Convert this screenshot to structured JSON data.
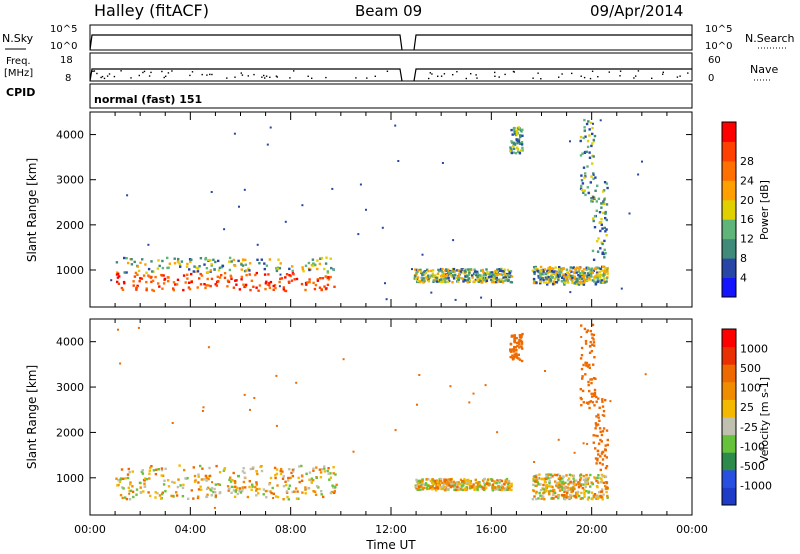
{
  "header": {
    "station": "Halley (fitACF)",
    "beam": "Beam 09",
    "date": "09/Apr/2014"
  },
  "panels": {
    "nsky_label": "N.Sky",
    "nsearch_label": "N.Search",
    "nsky_ticks": [
      "10^5",
      "10^0"
    ],
    "nsearch_ticks": [
      "10^5",
      "10^0"
    ],
    "freq_label_1": "Freq.",
    "freq_label_2": "[MHz]",
    "freq_ticks": [
      "18",
      "8"
    ],
    "nave_label": "Nave",
    "nave_ticks": [
      "60",
      "0"
    ],
    "cpid_label": "CPID",
    "cpid_text": "normal (fast) 151"
  },
  "colors": {
    "power_scale": [
      "#1414ff",
      "#2846a6",
      "#3f8a78",
      "#5fb47a",
      "#e0d000",
      "#ffa000",
      "#ff7000",
      "#ff4000",
      "#ff0000"
    ],
    "velocity_scale": [
      "#1e3cc8",
      "#2850e0",
      "#2c8a4a",
      "#66c23a",
      "#c0c0b0",
      "#f5b800",
      "#f08c00",
      "#ee6a00",
      "#e83000",
      "#ff0000"
    ],
    "trace": "#000000"
  },
  "chart_data": [
    {
      "type": "heatmap",
      "panel": "power",
      "ylabel": "Slant Range [km]",
      "ylim": [
        180,
        4500
      ],
      "xlim": [
        0,
        24
      ],
      "y_ticks": [
        "1000",
        "2000",
        "3000",
        "4000"
      ],
      "colorbar_label": "Power [dB]",
      "colorbar_ticks": [
        "4",
        "8",
        "12",
        "16",
        "20",
        "24",
        "28"
      ],
      "regions": [
        {
          "t0": 1.0,
          "t1": 9.8,
          "r0": 550,
          "r1": 1300,
          "kind": "band"
        },
        {
          "t0": 12.9,
          "t1": 16.8,
          "r0": 750,
          "r1": 1050,
          "kind": "band"
        },
        {
          "t0": 17.6,
          "t1": 20.6,
          "r0": 700,
          "r1": 1100,
          "kind": "band"
        },
        {
          "t0": 16.7,
          "t1": 17.2,
          "r0": 3600,
          "r1": 4200,
          "kind": "streak"
        },
        {
          "t0": 19.5,
          "t1": 20.1,
          "r0": 2500,
          "r1": 4400,
          "kind": "streak"
        },
        {
          "t0": 20.0,
          "t1": 20.6,
          "r0": 1200,
          "r1": 3000,
          "kind": "streak"
        }
      ]
    },
    {
      "type": "heatmap",
      "panel": "velocity",
      "ylabel": "Slant Range [km]",
      "ylim": [
        180,
        4500
      ],
      "xlim": [
        0,
        24
      ],
      "y_ticks": [
        "1000",
        "2000",
        "3000",
        "4000"
      ],
      "x_ticks": [
        "00:00",
        "04:00",
        "08:00",
        "12:00",
        "16:00",
        "20:00",
        "00:00"
      ],
      "xlabel": "Time UT",
      "colorbar_label": "Velocity [m s-1]",
      "colorbar_ticks": [
        "1000",
        "500",
        "100",
        "25",
        "-25",
        "-100",
        "-500",
        "-1000"
      ],
      "regions": [
        {
          "t0": 1.0,
          "t1": 9.8,
          "r0": 550,
          "r1": 1300,
          "kind": "band"
        },
        {
          "t0": 12.9,
          "t1": 16.8,
          "r0": 750,
          "r1": 1000,
          "kind": "band"
        },
        {
          "t0": 17.6,
          "t1": 20.6,
          "r0": 550,
          "r1": 1100,
          "kind": "band"
        },
        {
          "t0": 16.7,
          "t1": 17.2,
          "r0": 3600,
          "r1": 4200,
          "kind": "streak"
        },
        {
          "t0": 19.5,
          "t1": 20.1,
          "r0": 2500,
          "r1": 4400,
          "kind": "streak"
        },
        {
          "t0": 20.0,
          "t1": 20.6,
          "r0": 1200,
          "r1": 2900,
          "kind": "streak"
        }
      ]
    }
  ]
}
